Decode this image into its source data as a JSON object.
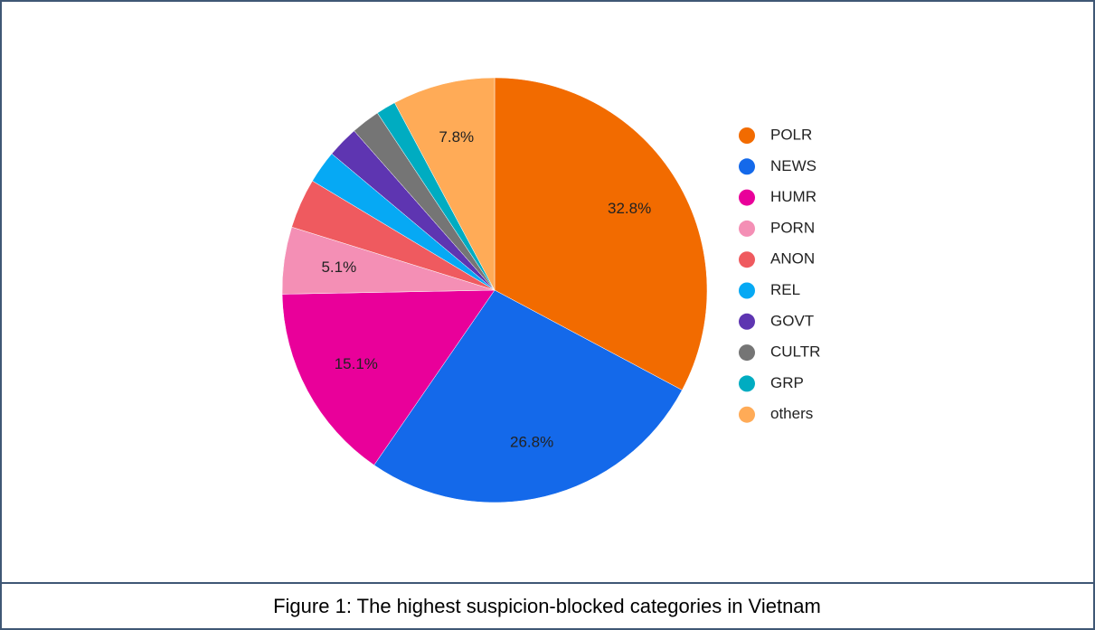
{
  "chart_data": {
    "type": "pie",
    "categories": [
      "POLR",
      "NEWS",
      "HUMR",
      "PORN",
      "ANON",
      "REL",
      "GOVT",
      "CULTR",
      "GRP",
      "others"
    ],
    "values": [
      32.8,
      26.8,
      15.1,
      5.1,
      3.8,
      2.5,
      2.4,
      2.2,
      1.5,
      7.8
    ],
    "value_labels": [
      "32.8%",
      "26.8%",
      "15.1%",
      "5.1%",
      null,
      null,
      null,
      null,
      null,
      "7.8%"
    ],
    "colors": [
      "#f26b00",
      "#1469ea",
      "#e9009a",
      "#f48fb5",
      "#ef5a5f",
      "#06a9f4",
      "#5e35b1",
      "#757575",
      "#00acc1",
      "#ffab57"
    ],
    "legend": "right"
  },
  "caption": "Figure 1: The highest suspicion-blocked categories in Vietnam"
}
